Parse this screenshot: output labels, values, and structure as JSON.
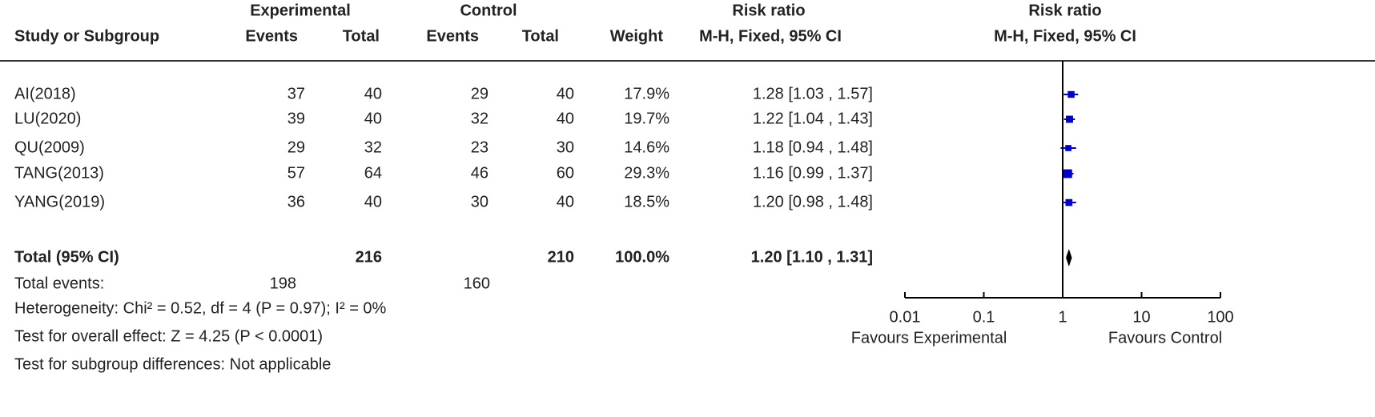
{
  "chart_data": {
    "type": "forest",
    "header": {
      "experimental": "Experimental",
      "control": "Control",
      "risk_ratio_col": "Risk ratio",
      "risk_ratio_plot": "Risk ratio",
      "study": "Study or Subgroup",
      "events": "Events",
      "total": "Total",
      "weight": "Weight",
      "method": "M-H, Fixed, 95% CI"
    },
    "studies": [
      {
        "name": "AI(2018)",
        "exp_events": 37,
        "exp_total": 40,
        "ctl_events": 29,
        "ctl_total": 40,
        "weight": 17.9,
        "weight_label": "17.9%",
        "rr": 1.28,
        "ci": [
          1.03,
          1.57
        ],
        "rr_label": "1.28 [1.03 , 1.57]"
      },
      {
        "name": "LU(2020)",
        "exp_events": 39,
        "exp_total": 40,
        "ctl_events": 32,
        "ctl_total": 40,
        "weight": 19.7,
        "weight_label": "19.7%",
        "rr": 1.22,
        "ci": [
          1.04,
          1.43
        ],
        "rr_label": "1.22 [1.04 , 1.43]"
      },
      {
        "name": "QU(2009)",
        "exp_events": 29,
        "exp_total": 32,
        "ctl_events": 23,
        "ctl_total": 30,
        "weight": 14.6,
        "weight_label": "14.6%",
        "rr": 1.18,
        "ci": [
          0.94,
          1.48
        ],
        "rr_label": "1.18 [0.94 , 1.48]"
      },
      {
        "name": "TANG(2013)",
        "exp_events": 57,
        "exp_total": 64,
        "ctl_events": 46,
        "ctl_total": 60,
        "weight": 29.3,
        "weight_label": "29.3%",
        "rr": 1.16,
        "ci": [
          0.99,
          1.37
        ],
        "rr_label": "1.16 [0.99 , 1.37]"
      },
      {
        "name": "YANG(2019)",
        "exp_events": 36,
        "exp_total": 40,
        "ctl_events": 30,
        "ctl_total": 40,
        "weight": 18.5,
        "weight_label": "18.5%",
        "rr": 1.2,
        "ci": [
          0.98,
          1.48
        ],
        "rr_label": "1.20 [0.98 , 1.48]"
      }
    ],
    "total": {
      "name": "Total (95% CI)",
      "exp_total": 216,
      "ctl_total": 210,
      "weight": 100.0,
      "weight_label": "100.0%",
      "rr": 1.2,
      "ci": [
        1.1,
        1.31
      ],
      "rr_label": "1.20 [1.10 , 1.31]"
    },
    "total_events": {
      "name": "Total events:",
      "exp": 198,
      "ctl": 160
    },
    "notes": [
      "Heterogeneity: Chi² = 0.52, df = 4 (P = 0.97); I² = 0%",
      "Test for overall effect: Z = 4.25 (P < 0.0001)",
      "Test for subgroup differences: Not applicable"
    ],
    "xlim": [
      0.01,
      100
    ],
    "xticks": [
      0.01,
      0.1,
      1,
      10,
      100
    ],
    "log": true,
    "xlabel_left": "Favours Experimental",
    "xlabel_right": "Favours Control",
    "color": "#0000cc"
  }
}
